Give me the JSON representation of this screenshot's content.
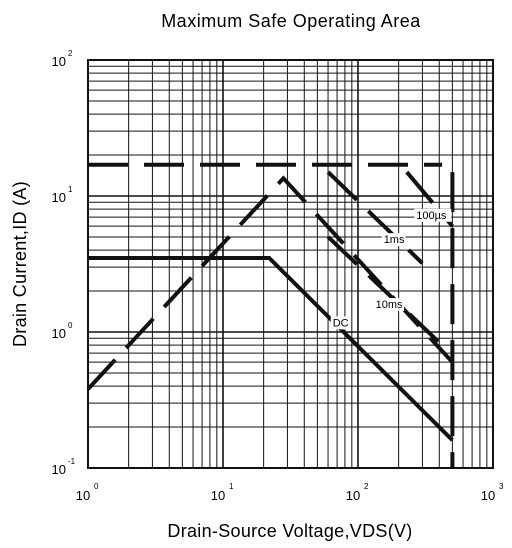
{
  "chart_data": {
    "type": "line",
    "title": "Maximum Safe Operating Area",
    "xlabel": "Drain-Source  Voltage,VDS(V)",
    "ylabel": "Drain Current,ID (A)",
    "x_scale": "log",
    "y_scale": "log",
    "xlim": [
      1,
      1000
    ],
    "ylim": [
      0.1,
      100
    ],
    "grid": true,
    "x_ticks": [
      {
        "base": "10",
        "exp": "0",
        "value": 1
      },
      {
        "base": "10",
        "exp": "1",
        "value": 10
      },
      {
        "base": "10",
        "exp": "2",
        "value": 100
      },
      {
        "base": "10",
        "exp": "3",
        "value": 1000
      }
    ],
    "y_ticks": [
      {
        "base": "10",
        "exp": "-1",
        "value": 0.1
      },
      {
        "base": "10",
        "exp": "0",
        "value": 1
      },
      {
        "base": "10",
        "exp": "1",
        "value": 10
      },
      {
        "base": "10",
        "exp": "2",
        "value": 100
      }
    ],
    "series": [
      {
        "style": "solid",
        "points": [
          [
            1,
            3.5
          ],
          [
            22,
            3.5
          ],
          [
            500,
            0.16
          ]
        ]
      },
      {
        "style": "dashed",
        "points": [
          [
            1,
            0.38
          ],
          [
            28,
            13.5
          ],
          [
            500,
            0.6
          ]
        ]
      },
      {
        "style": "dashed",
        "points": [
          [
            1,
            17
          ],
          [
            420,
            17
          ]
        ]
      },
      {
        "style": "dashed",
        "points": [
          [
            500,
            15
          ],
          [
            500,
            0.1
          ]
        ]
      },
      {
        "style": "dashed",
        "points": [
          [
            230,
            15
          ],
          [
            500,
            6
          ]
        ]
      },
      {
        "style": "dashed",
        "points": [
          [
            60,
            15
          ],
          [
            300,
            3.2
          ]
        ]
      },
      {
        "style": "dashed",
        "points": [
          [
            60,
            5
          ],
          [
            450,
            0.75
          ]
        ]
      }
    ],
    "annotations": [
      {
        "text": "100µs",
        "x": 270,
        "y": 6.8
      },
      {
        "text": "1ms",
        "x": 155,
        "y": 4.5
      },
      {
        "text": "10ms",
        "x": 135,
        "y": 1.5
      },
      {
        "text": "DC",
        "x": 65,
        "y": 1.1
      }
    ]
  }
}
